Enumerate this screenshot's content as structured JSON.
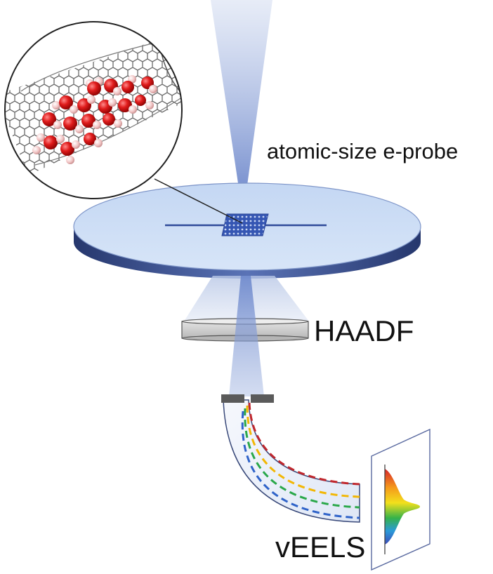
{
  "labels": {
    "probe": "atomic-size e-probe",
    "haadf": "HAADF",
    "veels": "vEELS"
  },
  "colors": {
    "beam": "#6f8ccd",
    "disk_top": "#cfe0f7",
    "disk_edge": "#2f437f",
    "detector": "#cfcfcf",
    "spectrometer": "#eef3fb",
    "paths": [
      "#c0272d",
      "#f2b705",
      "#2aa84a",
      "#2f63c9"
    ]
  },
  "icons": [
    "carbon-nanotube-icon",
    "water-molecule-icon",
    "sample-grid-icon",
    "spectrum-gradient-icon"
  ]
}
